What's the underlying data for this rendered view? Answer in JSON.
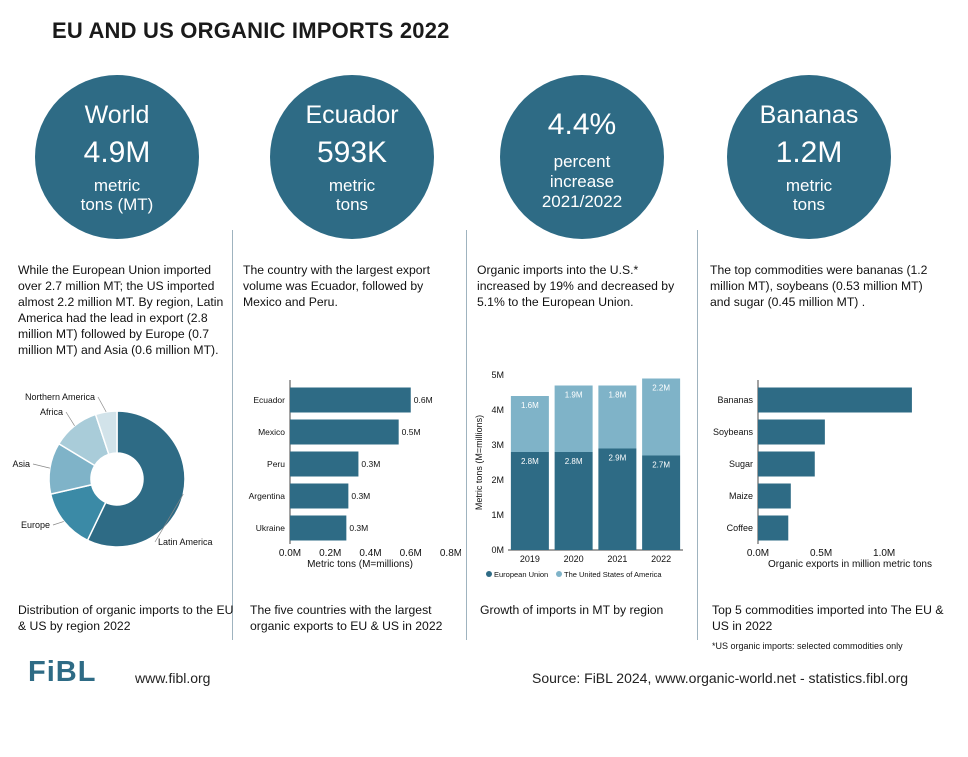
{
  "title": "EU AND US ORGANIC IMPORTS 2022",
  "colors": {
    "primary": "#2e6b85",
    "secondary": "#7fb3c8",
    "pie": [
      "#2e6b85",
      "#3b8aa6",
      "#7fb3c8",
      "#a9ccd9",
      "#d2e3ea"
    ]
  },
  "circles": [
    {
      "name": "World",
      "value": "4.9M",
      "unit1": "metric",
      "unit2": "tons (MT)"
    },
    {
      "name": "Ecuador",
      "value": "593K",
      "unit1": "metric",
      "unit2": "tons"
    },
    {
      "name": "4.4%",
      "value": "",
      "unit1": "percent",
      "unit2": "increase",
      "unit3": "2021/2022"
    },
    {
      "name": "Bananas",
      "value": "1.2M",
      "unit1": "metric",
      "unit2": "tons"
    }
  ],
  "descriptions": [
    "While the European Union imported over 2.7 million MT; the US imported almost 2.2 million MT. By region, Latin America had the lead in export (2.8 million MT) followed by Europe (0.7 million MT) and Asia (0.6 million MT).",
    "The country with the largest export volume was Ecuador, followed by Mexico and Peru.",
    "Organic imports into the U.S.* increased by 19% and decreased by 5.1% to the European Union.",
    "The top commodities were bananas (1.2 million MT), soybeans (0.53 million MT) and sugar (0.45 million MT) ."
  ],
  "captions": [
    "Distribution of organic imports to the EU & US by region 2022",
    "The five countries with the largest organic exports to EU & US in 2022",
    "Growth of imports in MT by region",
    "Top 5 commodities imported into The EU & US in 2022"
  ],
  "footnote": "*US organic imports: selected commodities only",
  "footer": {
    "logo": "FiBL",
    "website": "www.fibl.org",
    "source": "Source: FiBL 2024, www.organic-world.net - statistics.fibl.org"
  },
  "chart_data": [
    {
      "type": "pie",
      "donut": true,
      "labels": [
        "Latin America",
        "Europe",
        "Asia",
        "Africa",
        "Northern America"
      ],
      "values": [
        2.8,
        0.7,
        0.6,
        0.55,
        0.25
      ],
      "unit": "million MT"
    },
    {
      "type": "bar",
      "orientation": "horizontal",
      "categories": [
        "Ecuador",
        "Mexico",
        "Peru",
        "Argentina",
        "Ukraine"
      ],
      "values": [
        0.6,
        0.54,
        0.34,
        0.29,
        0.28
      ],
      "data_labels": [
        "0.6M",
        "0.5M",
        "0.3M",
        "0.3M",
        "0.3M"
      ],
      "xlabel": "Metric tons (M=millions)",
      "xticks": [
        "0.0M",
        "0.2M",
        "0.4M",
        "0.6M",
        "0.8M"
      ],
      "xlim": [
        0,
        0.8
      ]
    },
    {
      "type": "bar",
      "stacked": true,
      "categories": [
        "2019",
        "2020",
        "2021",
        "2022"
      ],
      "series": [
        {
          "name": "European Union",
          "values": [
            2.8,
            2.8,
            2.9,
            2.7
          ],
          "data_labels": [
            "2.8M",
            "2.8M",
            "2.9M",
            "2.7M"
          ]
        },
        {
          "name": "The United States of America",
          "values": [
            1.6,
            1.9,
            1.8,
            2.2
          ],
          "data_labels": [
            "1.6M",
            "1.9M",
            "1.8M",
            "2.2M"
          ]
        }
      ],
      "ylabel": "Metric tons (M=millions)",
      "yticks": [
        "0M",
        "1M",
        "2M",
        "3M",
        "4M",
        "5M"
      ],
      "ylim": [
        0,
        5
      ],
      "legend": "bottom"
    },
    {
      "type": "bar",
      "orientation": "horizontal",
      "categories": [
        "Bananas",
        "Soybeans",
        "Sugar",
        "Maize",
        "Coffee"
      ],
      "values": [
        1.22,
        0.53,
        0.45,
        0.26,
        0.24
      ],
      "xlabel": "Organic exports in million metric tons",
      "xticks": [
        "0.0M",
        "0.5M",
        "1.0M"
      ],
      "xlim": [
        0,
        1.3
      ]
    }
  ]
}
